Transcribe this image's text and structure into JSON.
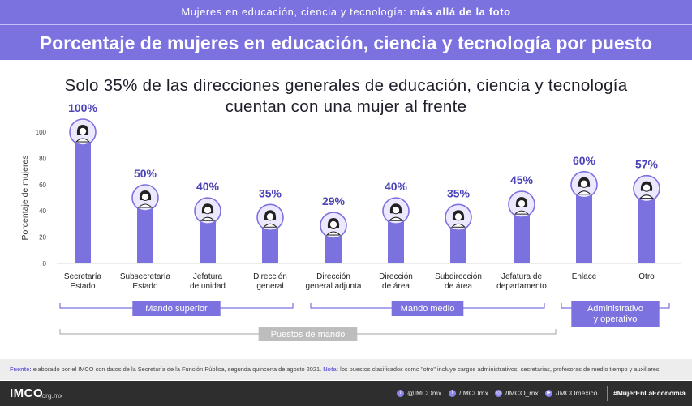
{
  "header": {
    "top_text": "Mujeres en educación, ciencia y tecnología:",
    "top_text_bold": "más allá de la foto",
    "title": "Porcentaje de mujeres en educación, ciencia y tecnología por puesto"
  },
  "headline": {
    "line1": "Solo 35% de las direcciones generales de educación, ciencia y tecnología",
    "line2": "cuentan con una mujer al frente"
  },
  "colors": {
    "header": "#7b72e0",
    "bar": "#7b72e0",
    "icon_bg": "#ece9ff",
    "group_label_bg": "#7b72e0",
    "total_label_bg": "#bdbdbd",
    "footnote_label": "#6b63d9",
    "footer_bg": "#2e2e2e"
  },
  "chart_data": {
    "type": "bar",
    "ylabel": "Porcentaje de mujeres",
    "ylim": [
      0,
      100
    ],
    "yticks": [
      0,
      20,
      40,
      60,
      80,
      100
    ],
    "categories": [
      [
        "Secretaría",
        "Estado"
      ],
      [
        "Subsecretaría",
        "Estado"
      ],
      [
        "Jefatura",
        "de unidad"
      ],
      [
        "Dirección",
        "general"
      ],
      [
        "Dirección",
        "general adjunta"
      ],
      [
        "Dirección",
        "de área"
      ],
      [
        "Subdirección",
        "de área"
      ],
      [
        "Jefatura de",
        "departamento"
      ],
      [
        "Enlace"
      ],
      [
        "Otro"
      ]
    ],
    "values": [
      100,
      50,
      40,
      35,
      29,
      40,
      35,
      45,
      60,
      57
    ],
    "value_labels": [
      "100%",
      "50%",
      "40%",
      "35%",
      "29%",
      "40%",
      "35%",
      "45%",
      "60%",
      "57%"
    ],
    "groups": [
      {
        "label": [
          "Mando superior"
        ],
        "from": 0,
        "to": 3
      },
      {
        "label": [
          "Mando medio"
        ],
        "from": 4,
        "to": 7
      },
      {
        "label": [
          "Administrativo",
          "y operativo"
        ],
        "from": 8,
        "to": 9
      }
    ],
    "total_group": {
      "label": "Puestos de mando",
      "from": 0,
      "to": 7
    },
    "grid": false
  },
  "footnote": {
    "source_label": "Fuente:",
    "source_text": "elaborado por el IMCO con datos de la Secretaría de la Función Pública, segunda quincena de agosto 2021.",
    "note_label": "Nota:",
    "note_text": "los puestos clasificados como \"otro\" incluye cargos administrativos, secretarias, profesoras de medio tiempo y auxiliares."
  },
  "footer": {
    "logo": "IMCO",
    "logo_suffix": ".org.mx",
    "social": [
      {
        "icon": "twitter-icon",
        "glyph": "t",
        "text": "@IMCOmx"
      },
      {
        "icon": "facebook-icon",
        "glyph": "f",
        "text": "/IMCOmx"
      },
      {
        "icon": "instagram-icon",
        "glyph": "◎",
        "text": "/IMCO_mx"
      },
      {
        "icon": "youtube-icon",
        "glyph": "▶",
        "text": "/IMCOmexico"
      }
    ],
    "hashtag": "#MujerEnLaEconomía"
  }
}
